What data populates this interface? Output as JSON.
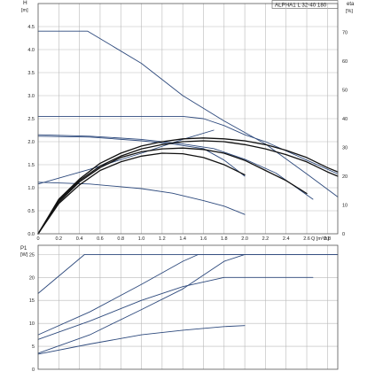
{
  "header": {
    "model": "ALPHA1 L 32-40 180",
    "eta_label": "eta",
    "eta_unit": "[%]",
    "h_label": "H",
    "h_unit": "[m]",
    "p1_label": "P1",
    "p1_unit": "[W]",
    "q_label": "Q [m³/h]"
  },
  "colors": {
    "curve": "#2e4a7d",
    "efficiency": "#111111",
    "grid": "#b9b9b9"
  },
  "chart_data": [
    {
      "type": "line",
      "title": "ALPHA1 L 32-40 180",
      "xlabel": "Q [m³/h]",
      "ylabel": "H [m]",
      "y2label": "eta [%]",
      "xlim": [
        0,
        2.9
      ],
      "ylim": [
        0,
        5.0
      ],
      "y2lim": [
        0,
        80
      ],
      "grid": true,
      "x_ticks": [
        "0",
        "0.2",
        "0.4",
        "0.6",
        "0.8",
        "1.0",
        "1.2",
        "1.4",
        "1.6",
        "1.8",
        "2.0",
        "2.2",
        "2.4",
        "2.6",
        "2.8"
      ],
      "y_ticks": [
        "0.0",
        "0.5",
        "1.0",
        "1.5",
        "2.0",
        "2.5",
        "3.0",
        "3.5",
        "4.0",
        "4.5"
      ],
      "y2_ticks": [
        "0",
        "10",
        "20",
        "30",
        "40",
        "50",
        "60",
        "70"
      ],
      "series": [
        {
          "axis": "left",
          "x": [
            0,
            0.48,
            1.0,
            1.4,
            1.8,
            2.2,
            2.6,
            2.9
          ],
          "y": [
            4.4,
            4.4,
            3.7,
            3.0,
            2.45,
            1.95,
            1.3,
            0.8
          ]
        },
        {
          "axis": "left",
          "x": [
            0,
            1.4,
            1.6,
            1.8,
            2.0,
            2.2,
            2.4,
            2.6,
            2.9
          ],
          "y": [
            2.55,
            2.55,
            2.5,
            2.35,
            2.15,
            2.0,
            1.8,
            1.6,
            1.3
          ]
        },
        {
          "axis": "left",
          "x": [
            0,
            0.5,
            1.0,
            1.4,
            1.7,
            2.0,
            2.3,
            2.66
          ],
          "y": [
            2.15,
            2.12,
            2.05,
            1.95,
            1.85,
            1.62,
            1.32,
            0.75
          ]
        },
        {
          "axis": "left",
          "x": [
            0,
            0.5,
            1.0,
            1.3,
            1.6,
            1.8,
            2.0
          ],
          "y": [
            2.12,
            2.1,
            2.02,
            1.95,
            1.85,
            1.6,
            1.25
          ]
        },
        {
          "axis": "left",
          "x": [
            0,
            0.5,
            1.0,
            1.3,
            1.6,
            1.8,
            2.0
          ],
          "y": [
            1.12,
            1.08,
            0.98,
            0.88,
            0.72,
            0.6,
            0.42
          ]
        },
        {
          "axis": "left",
          "x": [
            0,
            0.5,
            1.0,
            1.4,
            1.7
          ],
          "y": [
            1.08,
            1.4,
            1.75,
            2.05,
            2.25
          ]
        },
        {
          "axis": "right",
          "x": [
            0,
            0.2,
            0.4,
            0.6,
            0.8,
            1.0,
            1.2,
            1.4,
            1.6,
            1.8,
            2.0,
            2.2,
            2.4,
            2.6,
            2.8,
            2.9
          ],
          "y": [
            0,
            12,
            19,
            24.5,
            28,
            30.5,
            32,
            33,
            33.3,
            33,
            32.3,
            31,
            29,
            26.5,
            23,
            21.5
          ]
        },
        {
          "axis": "right",
          "x": [
            0,
            0.2,
            0.4,
            0.6,
            0.8,
            1.0,
            1.2,
            1.4,
            1.6,
            1.8,
            2.0,
            2.2,
            2.4,
            2.6,
            2.8,
            2.9
          ],
          "y": [
            0,
            11.5,
            18.5,
            23.5,
            27,
            29.5,
            31,
            32,
            32.3,
            32,
            31,
            29.5,
            27.5,
            25,
            21.5,
            20
          ]
        },
        {
          "axis": "right",
          "x": [
            0,
            0.2,
            0.4,
            0.6,
            0.8,
            1.0,
            1.2,
            1.4,
            1.6,
            1.8,
            2.0,
            2.2,
            2.4,
            2.6
          ],
          "y": [
            0,
            11,
            18,
            23,
            26.5,
            28.5,
            29.5,
            29.8,
            29.3,
            28,
            25.5,
            22,
            18.5,
            14
          ]
        },
        {
          "axis": "right",
          "x": [
            0,
            0.2,
            0.4,
            0.6,
            0.8,
            1.0,
            1.2,
            1.4,
            1.6,
            1.8,
            2.0
          ],
          "y": [
            0,
            10.5,
            17,
            22,
            25,
            27,
            28,
            27.8,
            26.5,
            24,
            20.5
          ]
        }
      ]
    },
    {
      "type": "line",
      "xlabel": "",
      "ylabel": "P1 [W]",
      "xlim": [
        0,
        2.9
      ],
      "ylim": [
        0,
        27
      ],
      "grid": true,
      "y_ticks": [
        "0",
        "5",
        "10",
        "15",
        "20",
        "25"
      ],
      "series": [
        {
          "x": [
            0,
            0.45,
            1.0,
            2.0,
            2.9
          ],
          "y": [
            16.5,
            25,
            25,
            25,
            25
          ]
        },
        {
          "x": [
            0,
            0.5,
            1.0,
            1.4,
            1.55,
            2.0,
            2.9
          ],
          "y": [
            7.5,
            12.5,
            18.5,
            23.5,
            25,
            25,
            25
          ]
        },
        {
          "x": [
            0,
            0.5,
            1.0,
            1.4,
            1.8,
            2.0,
            2.66
          ],
          "y": [
            6.5,
            10.5,
            15,
            18,
            20,
            20,
            20
          ]
        },
        {
          "x": [
            0,
            0.5,
            1.0,
            1.4,
            1.8,
            2.0
          ],
          "y": [
            3.5,
            7.5,
            13,
            17.5,
            23.5,
            25
          ]
        },
        {
          "x": [
            0,
            0.5,
            1.0,
            1.4,
            1.8,
            2.0
          ],
          "y": [
            3.3,
            5.5,
            7.5,
            8.5,
            9.3,
            9.5
          ]
        }
      ]
    }
  ]
}
